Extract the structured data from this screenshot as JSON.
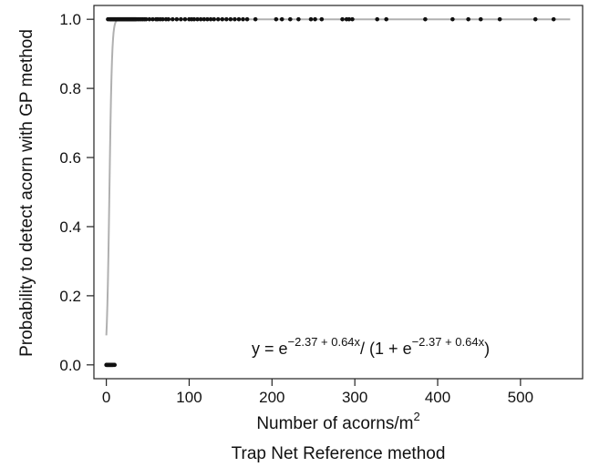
{
  "chart_data": {
    "type": "scatter",
    "ylabel": "Probability to detect acorn with GP method",
    "xlabel_main": "Number of acorns/m",
    "xlabel_sup": "2",
    "xlabel_sub": "Trap Net Reference method",
    "xlim": [
      -15,
      575
    ],
    "ylim": [
      -0.04,
      1.04
    ],
    "xticks": [
      0,
      100,
      200,
      300,
      400,
      500
    ],
    "xtick_labels": [
      "0",
      "100",
      "200",
      "300",
      "400",
      "500"
    ],
    "yticks": [
      0.0,
      0.2,
      0.4,
      0.6,
      0.8,
      1.0
    ],
    "ytick_labels": [
      "0.0",
      "0.2",
      "0.4",
      "0.6",
      "0.8",
      "1.0"
    ],
    "grid": false,
    "equation": {
      "lhs": "y = e",
      "exp1": "−2.37 + 0.64x",
      "mid": "/ (1 + e",
      "exp2": "−2.37 + 0.64x",
      "end": ")"
    },
    "logistic_fit": {
      "intercept": -2.37,
      "slope": 0.64,
      "x_range": [
        0,
        560
      ],
      "color": "#b0b0b0"
    },
    "point_color": "#111111",
    "points_zero": {
      "x": [
        0,
        0.5,
        1,
        1.5,
        2,
        2.5,
        3,
        3.5,
        4,
        4.5,
        5,
        5.5,
        6,
        6.5,
        7,
        7.5,
        8,
        9,
        10
      ],
      "y": [
        0,
        0,
        0,
        0,
        0,
        0,
        0,
        0,
        0,
        0,
        0,
        0,
        0,
        0,
        0,
        0,
        0,
        0,
        0
      ]
    },
    "points_one": {
      "x": [
        2,
        4,
        5,
        6,
        7,
        8,
        9,
        10,
        11,
        12,
        13,
        14,
        15,
        16,
        17,
        18,
        19,
        20,
        21,
        22,
        23,
        24,
        25,
        26,
        27,
        28,
        29,
        30,
        31,
        32,
        33,
        34,
        35,
        36,
        38,
        40,
        42,
        44,
        46,
        48,
        52,
        56,
        60,
        62,
        65,
        68,
        72,
        75,
        80,
        85,
        90,
        95,
        100,
        103,
        106,
        110,
        114,
        118,
        122,
        126,
        130,
        135,
        140,
        145,
        150,
        155,
        160,
        165,
        170,
        180,
        205,
        212,
        222,
        232,
        247,
        252,
        260,
        285,
        290,
        293,
        297,
        327,
        338,
        385,
        418,
        437,
        452,
        475,
        518,
        540
      ],
      "y": [
        1,
        1,
        1,
        1,
        1,
        1,
        1,
        1,
        1,
        1,
        1,
        1,
        1,
        1,
        1,
        1,
        1,
        1,
        1,
        1,
        1,
        1,
        1,
        1,
        1,
        1,
        1,
        1,
        1,
        1,
        1,
        1,
        1,
        1,
        1,
        1,
        1,
        1,
        1,
        1,
        1,
        1,
        1,
        1,
        1,
        1,
        1,
        1,
        1,
        1,
        1,
        1,
        1,
        1,
        1,
        1,
        1,
        1,
        1,
        1,
        1,
        1,
        1,
        1,
        1,
        1,
        1,
        1,
        1,
        1,
        1,
        1,
        1,
        1,
        1,
        1,
        1,
        1,
        1,
        1,
        1,
        1,
        1,
        1,
        1,
        1,
        1,
        1,
        1,
        1
      ]
    }
  }
}
